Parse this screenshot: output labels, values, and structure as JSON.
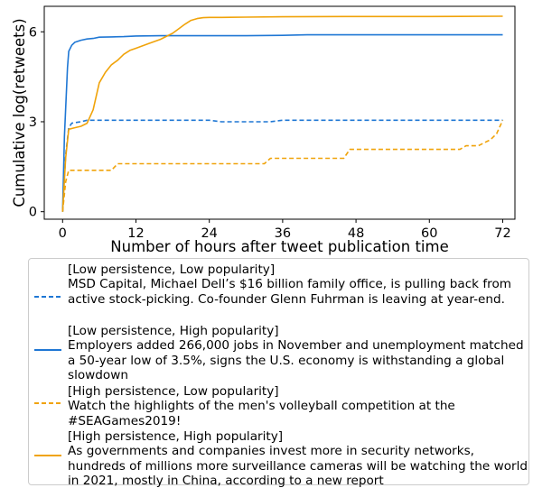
{
  "chart_data": {
    "type": "line",
    "xlabel": "Number of hours after tweet publication time",
    "ylabel": "Cumulative log(retweets)",
    "xlim": [
      -3,
      74
    ],
    "ylim": [
      -0.25,
      6.85
    ],
    "xticks": [
      0,
      12,
      24,
      36,
      48,
      60,
      72
    ],
    "yticks": [
      0,
      3,
      6
    ],
    "xtick_labels": [
      "0",
      "12",
      "24",
      "36",
      "48",
      "60",
      "72"
    ],
    "ytick_labels": [
      "0",
      "3",
      "6"
    ],
    "grid": false,
    "legend_placement": "below",
    "series": [
      {
        "name": "[Low persistence, Low popularity]\nMSD Capital, Michael Dell’s $16 billion family office, is pulling back from active stock-picking. Co-founder Glenn Fuhrman is leaving at year-end.",
        "color": "#1f77d4",
        "dash": "dashed",
        "x": [
          0,
          0.5,
          1,
          1.5,
          2,
          3,
          4,
          10,
          20,
          24,
          26,
          30,
          34,
          36,
          50,
          60,
          72
        ],
        "y": [
          0,
          1.9,
          2.8,
          2.95,
          2.97,
          3.0,
          3.05,
          3.05,
          3.05,
          3.05,
          3.0,
          3.0,
          3.0,
          3.05,
          3.05,
          3.05,
          3.05
        ]
      },
      {
        "name": "[Low persistence, High popularity]\nEmployers added 266,000 jobs in November and unemployment matched a 50-year low of 3.5%, signs the U.S. economy is withstanding a global slowdown",
        "color": "#1f77d4",
        "dash": "solid",
        "x": [
          0,
          0.3,
          0.8,
          1,
          1.5,
          2,
          3,
          4,
          5,
          6,
          8,
          10,
          12,
          16,
          20,
          24,
          30,
          36,
          40,
          48,
          60,
          72
        ],
        "y": [
          0,
          2.5,
          4.8,
          5.35,
          5.55,
          5.65,
          5.72,
          5.76,
          5.78,
          5.82,
          5.83,
          5.84,
          5.86,
          5.87,
          5.87,
          5.87,
          5.87,
          5.88,
          5.9,
          5.9,
          5.9,
          5.9
        ]
      },
      {
        "name": "[High persistence, Low popularity]\nWatch the highlights of the men's volleyball competition at the #SEAGames2019!",
        "color": "#f0a30a",
        "dash": "dashed",
        "x": [
          0,
          0.5,
          1,
          2,
          8,
          9,
          12,
          33,
          34,
          46,
          47,
          62,
          63,
          65,
          66,
          68,
          69,
          70,
          71,
          72
        ],
        "y": [
          0,
          1.0,
          1.38,
          1.38,
          1.38,
          1.6,
          1.6,
          1.6,
          1.78,
          1.78,
          2.08,
          2.08,
          2.08,
          2.08,
          2.2,
          2.2,
          2.3,
          2.4,
          2.6,
          3.05
        ]
      },
      {
        "name": "[High persistence, High popularity]\nAs governments and companies invest more in security networks, hundreds of millions more surveillance cameras will be watching the world in 2021, mostly in China, according to a new report",
        "color": "#f0a30a",
        "dash": "solid",
        "x": [
          0,
          0.5,
          1,
          2,
          3,
          4,
          5,
          6,
          7,
          8,
          9,
          10,
          11,
          12,
          14,
          16,
          18,
          19,
          20,
          21,
          22,
          23,
          24,
          26,
          30,
          36,
          48,
          60,
          72
        ],
        "y": [
          0,
          1.8,
          2.75,
          2.8,
          2.85,
          2.95,
          3.4,
          4.3,
          4.65,
          4.9,
          5.05,
          5.25,
          5.38,
          5.45,
          5.6,
          5.75,
          5.95,
          6.1,
          6.25,
          6.38,
          6.44,
          6.47,
          6.48,
          6.48,
          6.49,
          6.5,
          6.51,
          6.51,
          6.52
        ]
      }
    ]
  }
}
